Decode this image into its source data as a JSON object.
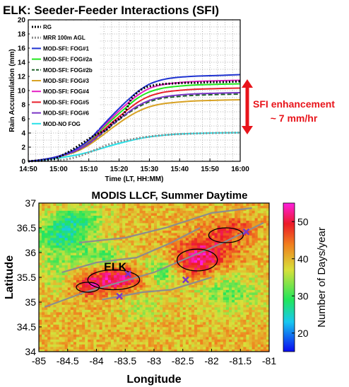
{
  "chart_data": [
    {
      "type": "line",
      "title": "ELK: Seeder-Feeder Interactions (SFI)",
      "xlabel": "Time (LT, HH:MM)",
      "ylabel": "Rain Accumulation (mm)",
      "xlim": [
        0,
        70
      ],
      "ylim": [
        0,
        20
      ],
      "x_ticks": [
        {
          "v": 0,
          "label": "14:50"
        },
        {
          "v": 10,
          "label": "15:00"
        },
        {
          "v": 20,
          "label": "15:10"
        },
        {
          "v": 30,
          "label": "15:20"
        },
        {
          "v": 40,
          "label": "15:30"
        },
        {
          "v": 50,
          "label": "15:40"
        },
        {
          "v": 60,
          "label": "15:50"
        },
        {
          "v": 70,
          "label": "16:00"
        }
      ],
      "y_ticks": [
        0,
        2,
        4,
        6,
        8,
        10,
        12,
        14,
        16,
        18,
        20
      ],
      "grid": "dotted",
      "legend_position": "top-left",
      "annotation": {
        "text_line1": "SFI enhancement",
        "text_line2": "~ 7 mm/hr",
        "color": "#e8141b",
        "from": 4,
        "to": 11.4,
        "at_x": 73.5
      },
      "series": [
        {
          "name": "RG",
          "color": "#000000",
          "style": "dotted-thick",
          "x": [
            0,
            8,
            10,
            14,
            18,
            22,
            26,
            28,
            30,
            32,
            34,
            36,
            38,
            40,
            44,
            48,
            52,
            56,
            60,
            64,
            70
          ],
          "y": [
            0,
            0.3,
            0.6,
            1.5,
            2.6,
            3.7,
            4.5,
            5.5,
            6.0,
            7.0,
            8.8,
            9.7,
            10.3,
            10.6,
            10.9,
            11.0,
            11.1,
            11.1,
            11.2,
            11.2,
            11.3
          ]
        },
        {
          "name": "MRR 100m AGL",
          "color": "#8c8c8c",
          "style": "dotted-thick",
          "x": [
            0,
            10,
            14,
            18,
            22,
            26,
            30,
            34,
            38,
            42,
            46,
            50,
            56,
            62,
            70
          ],
          "y": [
            0,
            0.15,
            0.4,
            0.9,
            1.6,
            2.3,
            2.8,
            3.1,
            3.4,
            3.6,
            3.75,
            3.85,
            3.95,
            4.0,
            4.05
          ]
        },
        {
          "name": "MOD-SFI: FOG#1",
          "color": "#1f33d1",
          "style": "solid",
          "x": [
            0,
            4,
            8,
            12,
            16,
            20,
            24,
            28,
            32,
            36,
            40,
            44,
            48,
            52,
            56,
            60,
            64,
            70
          ],
          "y": [
            0,
            0.2,
            0.5,
            1.0,
            1.8,
            3.0,
            4.8,
            6.6,
            8.3,
            9.8,
            10.9,
            11.5,
            11.8,
            11.95,
            12.05,
            12.1,
            12.15,
            12.25
          ]
        },
        {
          "name": "MOD-SFI: FOG#2a",
          "color": "#22e61d",
          "style": "solid",
          "x": [
            0,
            4,
            8,
            12,
            16,
            20,
            24,
            28,
            32,
            36,
            40,
            44,
            48,
            52,
            56,
            60,
            64,
            70
          ],
          "y": [
            0,
            0.2,
            0.5,
            0.95,
            1.7,
            2.8,
            4.4,
            6.0,
            7.5,
            8.9,
            9.8,
            10.3,
            10.55,
            10.7,
            10.8,
            10.85,
            10.9,
            10.95
          ]
        },
        {
          "name": "MOD-SFI: FOG#2b",
          "color": "#20632a",
          "style": "dashed",
          "x": [
            0,
            4,
            8,
            12,
            16,
            20,
            24,
            28,
            32,
            36,
            40,
            44,
            48,
            52,
            56,
            60,
            64,
            70
          ],
          "y": [
            0,
            0.2,
            0.45,
            0.9,
            1.5,
            2.5,
            3.8,
            5.2,
            6.5,
            7.6,
            8.4,
            8.9,
            9.1,
            9.25,
            9.35,
            9.4,
            9.45,
            9.5
          ]
        },
        {
          "name": "MOD-SFI: FOG#3",
          "color": "#d8a224",
          "style": "solid",
          "x": [
            0,
            4,
            8,
            12,
            16,
            20,
            24,
            28,
            32,
            36,
            40,
            44,
            48,
            52,
            56,
            60,
            64,
            70
          ],
          "y": [
            0,
            0.2,
            0.45,
            0.85,
            1.4,
            2.3,
            3.5,
            4.8,
            6.0,
            7.0,
            7.7,
            8.1,
            8.3,
            8.45,
            8.55,
            8.6,
            8.65,
            8.7
          ]
        },
        {
          "name": "MOD-SFI: FOG#4",
          "color": "#e51fc4",
          "style": "solid",
          "x": [
            0,
            4,
            8,
            12,
            16,
            20,
            24,
            28,
            32,
            36,
            40,
            44,
            48,
            52,
            56,
            60,
            64,
            70
          ],
          "y": [
            0,
            0.2,
            0.5,
            1.0,
            1.75,
            2.9,
            4.6,
            6.3,
            7.9,
            9.3,
            10.3,
            10.8,
            11.05,
            11.2,
            11.3,
            11.35,
            11.4,
            11.45
          ]
        },
        {
          "name": "MOD-SFI: FOG#5",
          "color": "#e8202c",
          "style": "solid",
          "x": [
            0,
            4,
            8,
            12,
            16,
            20,
            24,
            28,
            32,
            36,
            40,
            44,
            48,
            52,
            56,
            60,
            64,
            70
          ],
          "y": [
            0,
            0.2,
            0.45,
            0.9,
            1.6,
            2.6,
            4.1,
            5.6,
            7.0,
            8.3,
            9.2,
            9.7,
            9.95,
            10.1,
            10.2,
            10.25,
            10.3,
            10.35
          ]
        },
        {
          "name": "MOD-SFI: FOG#6",
          "color": "#7a35c6",
          "style": "solid",
          "x": [
            0,
            4,
            8,
            12,
            16,
            20,
            24,
            28,
            32,
            36,
            40,
            44,
            48,
            52,
            56,
            60,
            64,
            70
          ],
          "y": [
            0,
            0.2,
            0.45,
            0.9,
            1.55,
            2.5,
            3.9,
            5.3,
            6.6,
            7.8,
            8.6,
            9.05,
            9.3,
            9.45,
            9.55,
            9.6,
            9.65,
            9.7
          ]
        },
        {
          "name": "MOD-NO FOG",
          "color": "#28e1e8",
          "style": "solid",
          "x": [
            0,
            4,
            8,
            12,
            16,
            20,
            24,
            28,
            32,
            36,
            40,
            44,
            48,
            52,
            56,
            60,
            64,
            70
          ],
          "y": [
            0,
            0.15,
            0.35,
            0.6,
            0.9,
            1.3,
            1.8,
            2.3,
            2.75,
            3.15,
            3.45,
            3.65,
            3.8,
            3.9,
            3.95,
            4.0,
            4.02,
            4.05
          ]
        }
      ]
    },
    {
      "type": "heatmap",
      "title": "MODIS LLCF, Summer Daytime",
      "xlabel": "Longitude",
      "ylabel": "Latitude",
      "xlim": [
        -85,
        -81
      ],
      "ylim": [
        34,
        37
      ],
      "x_ticks": [
        {
          "v": -85,
          "label": "-85"
        },
        {
          "v": -84.5,
          "label": "-84.5"
        },
        {
          "v": -84,
          "label": "-84"
        },
        {
          "v": -83.5,
          "label": "-83.5"
        },
        {
          "v": -83,
          "label": "-83"
        },
        {
          "v": -82.5,
          "label": "-82.5"
        },
        {
          "v": -82,
          "label": "-82"
        },
        {
          "v": -81.5,
          "label": "-81.5"
        },
        {
          "v": -81,
          "label": "-81"
        }
      ],
      "y_ticks": [
        {
          "v": 34,
          "label": "34"
        },
        {
          "v": 34.5,
          "label": "34.5"
        },
        {
          "v": 35,
          "label": "35"
        },
        {
          "v": 35.5,
          "label": "35.5"
        },
        {
          "v": 36,
          "label": "36"
        },
        {
          "v": 36.5,
          "label": "36.5"
        },
        {
          "v": 37,
          "label": "37"
        }
      ],
      "colorbar": {
        "label": "Number of Days/year",
        "min": 15,
        "max": 55,
        "ticks": [
          20,
          30,
          40,
          50
        ]
      },
      "station_label": "ELK",
      "station": {
        "lon": -83.55,
        "lat": 35.55
      },
      "markers": [
        {
          "lon": -83.45,
          "lat": 35.57,
          "symbol": "x",
          "color": "#7a35c6"
        },
        {
          "lon": -83.6,
          "lat": 35.12,
          "symbol": "x",
          "color": "#7a35c6"
        },
        {
          "lon": -82.45,
          "lat": 35.45,
          "symbol": "x",
          "color": "#7a35c6"
        },
        {
          "lon": -81.4,
          "lat": 36.42,
          "symbol": "x",
          "color": "#7a35c6"
        }
      ],
      "hotspots": [
        {
          "lon": -83.6,
          "lat": 35.5,
          "value": 53,
          "rlon": 0.55,
          "rlat": 0.25
        },
        {
          "lon": -82.3,
          "lat": 35.8,
          "value": 50,
          "rlon": 0.4,
          "rlat": 0.3
        },
        {
          "lon": -82.0,
          "lat": 36.1,
          "value": 48,
          "rlon": 0.5,
          "rlat": 0.35
        },
        {
          "lon": -84.1,
          "lat": 35.3,
          "value": 47,
          "rlon": 0.3,
          "rlat": 0.2
        },
        {
          "lon": -81.6,
          "lat": 36.5,
          "value": 46,
          "rlon": 0.4,
          "rlat": 0.2
        }
      ],
      "coldspots": [
        {
          "lon": -84.6,
          "lat": 36.3,
          "value": 26,
          "rlon": 0.5,
          "rlat": 0.35
        },
        {
          "lon": -84.3,
          "lat": 36.7,
          "value": 30,
          "rlon": 0.5,
          "rlat": 0.25
        },
        {
          "lon": -83.9,
          "lat": 35.9,
          "value": 30,
          "rlon": 0.4,
          "rlat": 0.25
        },
        {
          "lon": -82.9,
          "lat": 35.6,
          "value": 28,
          "rlon": 0.35,
          "rlat": 0.3
        },
        {
          "lon": -81.7,
          "lat": 35.2,
          "value": 32,
          "rlon": 0.6,
          "rlat": 0.4
        },
        {
          "lon": -83.2,
          "lat": 34.9,
          "value": 35,
          "rlon": 0.4,
          "rlat": 0.3
        },
        {
          "lon": -84.7,
          "lat": 35.6,
          "value": 34,
          "rlon": 0.3,
          "rlat": 0.4
        }
      ],
      "base_value": 40
    }
  ]
}
